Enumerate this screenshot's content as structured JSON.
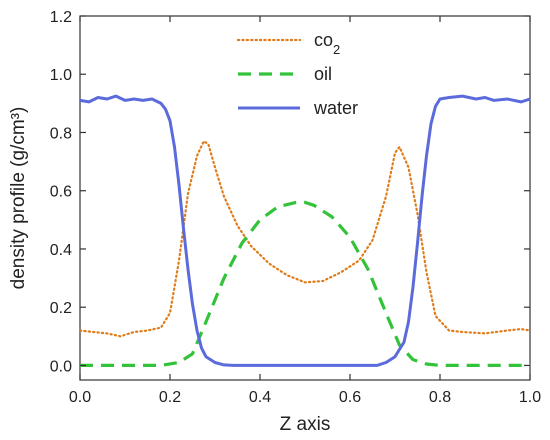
{
  "chart_data": {
    "type": "line",
    "title": "",
    "xlabel": "Z axis",
    "ylabel": "density profile (g/cm³)",
    "xlim": [
      0.0,
      1.0
    ],
    "ylim": [
      -0.05,
      1.2
    ],
    "xticks": [
      0.0,
      0.2,
      0.4,
      0.6,
      0.8,
      1.0
    ],
    "xtick_labels": [
      "0.0",
      "0.2",
      "0.4",
      "0.6",
      "0.8",
      "1.0"
    ],
    "yticks": [
      0.0,
      0.2,
      0.4,
      0.6,
      0.8,
      1.0,
      1.2
    ],
    "ytick_labels": [
      "0.0",
      "0.2",
      "0.4",
      "0.6",
      "0.8",
      "1.0",
      "1.2"
    ],
    "grid": false,
    "legend_position": "top-center",
    "series": [
      {
        "name": "co2",
        "label_main": "co",
        "label_sub": "2",
        "color": "#e07b17",
        "style": "dotted",
        "x": [
          0.0,
          0.03,
          0.06,
          0.09,
          0.12,
          0.15,
          0.18,
          0.2,
          0.22,
          0.24,
          0.26,
          0.275,
          0.285,
          0.3,
          0.32,
          0.35,
          0.38,
          0.42,
          0.46,
          0.5,
          0.54,
          0.58,
          0.62,
          0.65,
          0.68,
          0.7,
          0.71,
          0.73,
          0.75,
          0.77,
          0.79,
          0.82,
          0.85,
          0.9,
          0.95,
          0.98,
          1.0
        ],
        "values": [
          0.12,
          0.115,
          0.11,
          0.1,
          0.115,
          0.12,
          0.13,
          0.18,
          0.36,
          0.59,
          0.72,
          0.77,
          0.76,
          0.68,
          0.58,
          0.48,
          0.41,
          0.35,
          0.31,
          0.285,
          0.29,
          0.32,
          0.36,
          0.43,
          0.58,
          0.73,
          0.75,
          0.68,
          0.52,
          0.32,
          0.17,
          0.12,
          0.115,
          0.11,
          0.12,
          0.125,
          0.12
        ]
      },
      {
        "name": "oil",
        "color": "#33c33a",
        "style": "dashed",
        "x": [
          0.0,
          0.18,
          0.22,
          0.25,
          0.28,
          0.32,
          0.36,
          0.4,
          0.44,
          0.48,
          0.5,
          0.52,
          0.56,
          0.6,
          0.64,
          0.68,
          0.71,
          0.74,
          0.77,
          0.8,
          1.0
        ],
        "values": [
          0.0,
          0.0,
          0.01,
          0.04,
          0.15,
          0.3,
          0.42,
          0.5,
          0.545,
          0.56,
          0.56,
          0.55,
          0.51,
          0.44,
          0.33,
          0.18,
          0.07,
          0.02,
          0.005,
          0.0,
          0.0
        ]
      },
      {
        "name": "water",
        "color": "#5c6bdb",
        "style": "solid",
        "x": [
          0.0,
          0.02,
          0.04,
          0.06,
          0.08,
          0.1,
          0.12,
          0.14,
          0.16,
          0.18,
          0.19,
          0.2,
          0.21,
          0.22,
          0.23,
          0.24,
          0.25,
          0.26,
          0.27,
          0.28,
          0.3,
          0.32,
          0.34,
          0.4,
          0.5,
          0.6,
          0.66,
          0.68,
          0.7,
          0.72,
          0.73,
          0.74,
          0.75,
          0.76,
          0.77,
          0.78,
          0.79,
          0.8,
          0.82,
          0.85,
          0.88,
          0.9,
          0.92,
          0.95,
          0.98,
          1.0
        ],
        "values": [
          0.91,
          0.905,
          0.92,
          0.915,
          0.925,
          0.91,
          0.915,
          0.91,
          0.915,
          0.9,
          0.88,
          0.84,
          0.75,
          0.62,
          0.47,
          0.33,
          0.21,
          0.12,
          0.06,
          0.03,
          0.01,
          0.002,
          0.0,
          0.0,
          0.0,
          0.0,
          0.0,
          0.01,
          0.03,
          0.08,
          0.15,
          0.27,
          0.42,
          0.58,
          0.72,
          0.83,
          0.89,
          0.915,
          0.92,
          0.925,
          0.915,
          0.92,
          0.91,
          0.915,
          0.905,
          0.915
        ]
      }
    ]
  }
}
